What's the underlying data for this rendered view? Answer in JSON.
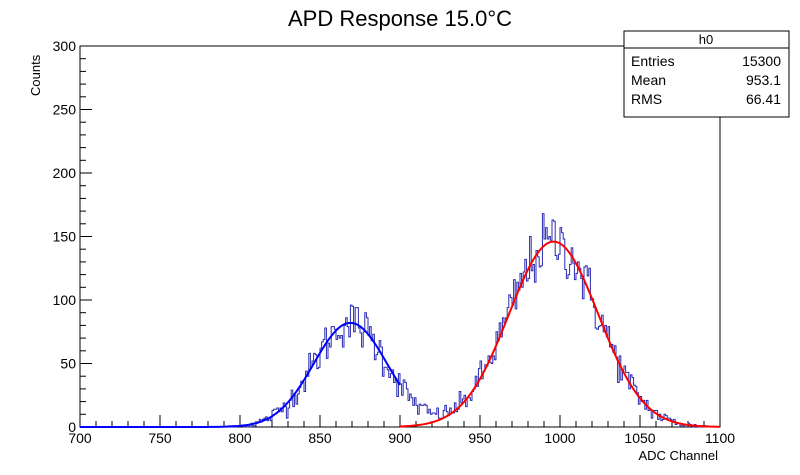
{
  "chart_data": {
    "type": "histogram",
    "title": "APD Response 15.0°C",
    "xlabel": "ADC Channel",
    "ylabel": "Counts",
    "xlim": [
      700,
      1100
    ],
    "ylim": [
      0,
      300
    ],
    "x_ticks": [
      "700",
      "750",
      "800",
      "850",
      "900",
      "950",
      "1000",
      "1050",
      "1100"
    ],
    "y_ticks": [
      "0",
      "50",
      "100",
      "150",
      "200",
      "250",
      "300"
    ],
    "bin_width": 1,
    "histogram_color": "#2a2ab0",
    "fits": [
      {
        "color": "#0000ff",
        "range": [
          700,
          900
        ],
        "amplitude": 82,
        "mean": 869,
        "sigma": 23
      },
      {
        "color": "#ff0000",
        "range": [
          900,
          1100
        ],
        "amplitude": 146,
        "mean": 996,
        "sigma": 28
      }
    ],
    "stats_box": {
      "title": "h0",
      "rows": [
        {
          "label": "Entries",
          "value": "15300"
        },
        {
          "label": "Mean",
          "value": "953.1"
        },
        {
          "label": "RMS",
          "value": "66.41"
        }
      ]
    },
    "grid": false,
    "legend": "top-right"
  }
}
